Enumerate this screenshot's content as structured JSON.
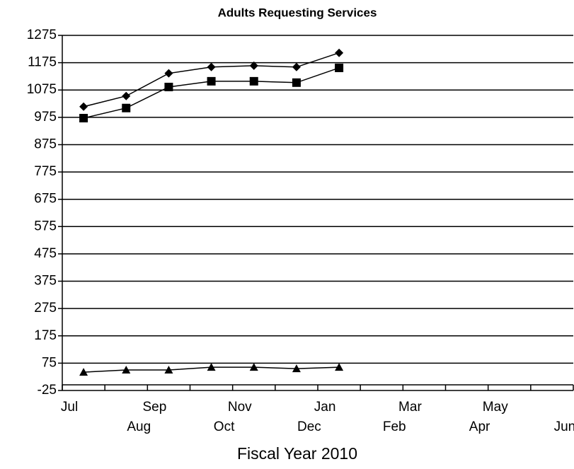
{
  "chart_data": {
    "type": "line",
    "title": "Adults Requesting Services",
    "x_label": "Fiscal Year 2010",
    "categories": [
      "Jul",
      "Aug",
      "Sep",
      "Oct",
      "Nov",
      "Dec",
      "Jan",
      "Feb",
      "Mar",
      "Apr",
      "May",
      "Jun"
    ],
    "series": [
      {
        "color": "#000000",
        "marker": "diamond",
        "values": [
          1014,
          1053,
          1136,
          1159,
          1164,
          1159,
          1211,
          null,
          null,
          null,
          null,
          null
        ]
      },
      {
        "color": "#000000",
        "marker": "square",
        "values": [
          972,
          1009,
          1086,
          1107,
          1107,
          1102,
          1156,
          null,
          null,
          null,
          null,
          null
        ]
      },
      {
        "color": "#000000",
        "marker": "triangle",
        "values": [
          42,
          50,
          50,
          60,
          60,
          55,
          60,
          null,
          null,
          null,
          null,
          null
        ]
      }
    ],
    "ylim": [
      -25,
      1275
    ],
    "yticks": [
      -25,
      75,
      175,
      275,
      375,
      475,
      575,
      675,
      775,
      875,
      975,
      1075,
      1175,
      1275
    ],
    "grid": true
  }
}
